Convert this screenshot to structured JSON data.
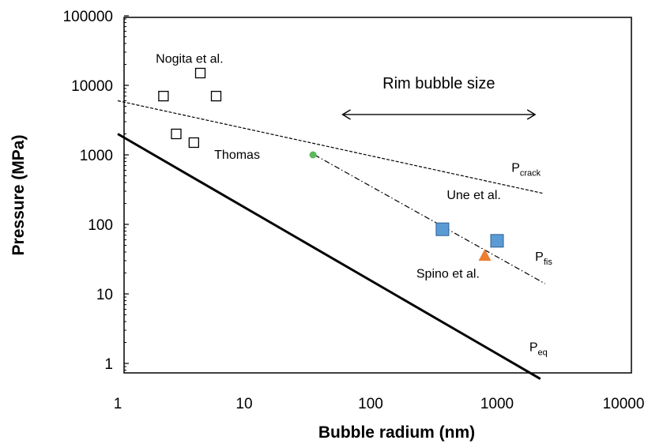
{
  "chart_data": {
    "type": "scatter",
    "xlabel": "Bubble radium (nm)",
    "ylabel": "Pressure (MPa)",
    "xscale": "log",
    "yscale": "log",
    "xlim": [
      1,
      10000
    ],
    "ylim": [
      0.6,
      100000
    ],
    "x_ticks": [
      {
        "v": 1,
        "label": "1"
      },
      {
        "v": 10,
        "label": "10"
      },
      {
        "v": 100,
        "label": "100"
      },
      {
        "v": 1000,
        "label": "1000"
      },
      {
        "v": 10000,
        "label": "10000"
      }
    ],
    "y_ticks": [
      {
        "v": 1,
        "label": "1"
      },
      {
        "v": 10,
        "label": "10"
      },
      {
        "v": 100,
        "label": "100"
      },
      {
        "v": 1000,
        "label": "1000"
      },
      {
        "v": 10000,
        "label": "10000"
      },
      {
        "v": 100000,
        "label": "100000"
      }
    ],
    "grid": false,
    "lines": [
      {
        "id": "peq",
        "label_main": "P",
        "label_sub": "eq",
        "style": "solid",
        "color": "#000000",
        "points": [
          [
            1,
            2000
          ],
          [
            2200,
            0.6
          ]
        ],
        "label_at": [
          1800,
          1.5
        ]
      },
      {
        "id": "pcrack",
        "label_main": "P",
        "label_sub": "crack",
        "style": "dashed",
        "color": "#000000",
        "points": [
          [
            1,
            6000
          ],
          [
            2300,
            280
          ]
        ],
        "label_at": [
          1300,
          570
        ]
      },
      {
        "id": "pfis",
        "label_main": "P",
        "label_sub": "fis",
        "style": "dashdot",
        "color": "#000000",
        "points": [
          [
            36,
            1000
          ],
          [
            2400,
            14
          ]
        ],
        "label_at": [
          2000,
          30
        ]
      }
    ],
    "series": [
      {
        "name": "Nogita et al.",
        "marker": "open-square",
        "color": "#000000",
        "points": [
          [
            2.3,
            7000
          ],
          [
            2.9,
            2000
          ],
          [
            4.0,
            1500
          ],
          [
            4.5,
            15000
          ],
          [
            6.0,
            7000
          ]
        ],
        "label_at": [
          2.0,
          21000
        ],
        "label_color": "#000000"
      },
      {
        "name": "Thomas",
        "marker": "circle",
        "color": "#5cb85c",
        "points": [
          [
            35,
            1000
          ]
        ],
        "label_at": [
          5.8,
          880
        ],
        "label_color": "#3aa64a"
      },
      {
        "name": "Une et al.",
        "marker": "filled-square",
        "color": "#5b9bd5",
        "points": [
          [
            370,
            85
          ],
          [
            1000,
            58
          ]
        ],
        "label_at": [
          400,
          230
        ],
        "label_color": "#3c78c0"
      },
      {
        "name": "Spino et al.",
        "marker": "triangle",
        "color": "#ed7d31",
        "points": [
          [
            800,
            35
          ]
        ],
        "label_at": [
          230,
          17
        ],
        "label_color": "#ed7d31"
      }
    ],
    "annotations": [
      {
        "text": "Rim bubble size",
        "kind": "double-arrow",
        "x_range": [
          60,
          2000
        ],
        "y": 3800,
        "text_y": 9000
      }
    ]
  }
}
